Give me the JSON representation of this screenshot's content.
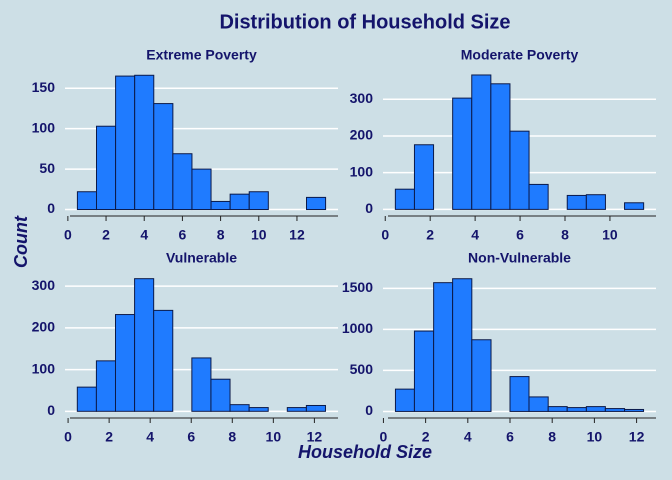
{
  "title": "Distribution of Household Size",
  "x_label": "Household Size",
  "y_label": "Count",
  "chart_data": [
    {
      "type": "histogram",
      "title": "Extreme Poverty",
      "color": "#1f7bff",
      "grid": true,
      "bins": [
        0.5,
        1.5,
        2.5,
        3.5,
        4.5,
        5.5,
        6.5,
        7.5,
        8.5,
        9.5,
        10.5,
        11.5,
        12.5,
        13.5
      ],
      "values": [
        22,
        103,
        165,
        166,
        131,
        69,
        50,
        10,
        19,
        22,
        0,
        0,
        15
      ],
      "xlim": [
        -0.15,
        14.15
      ],
      "xticks": [
        0,
        2,
        4,
        6,
        8,
        10,
        12
      ],
      "ylim": [
        -8,
        175
      ],
      "yticks": [
        0,
        50,
        100,
        150
      ]
    },
    {
      "type": "histogram",
      "title": "Moderate Poverty",
      "color": "#1f7bff",
      "grid": true,
      "bins": [
        0.45,
        1.3,
        2.15,
        3.0,
        3.85,
        4.7,
        5.55,
        6.4,
        7.25,
        8.1,
        8.95,
        9.8,
        10.65,
        11.5
      ],
      "values": [
        55,
        176,
        0,
        303,
        366,
        342,
        213,
        68,
        0,
        38,
        40,
        0,
        18
      ],
      "xlim": [
        -0.1,
        12.05
      ],
      "xticks": [
        0,
        2,
        4,
        6,
        8,
        10
      ],
      "ylim": [
        -18,
        385
      ],
      "yticks": [
        0,
        100,
        200,
        300
      ]
    },
    {
      "type": "histogram",
      "title": "Vulnerable",
      "color": "#1f7bff",
      "grid": true,
      "bins": [
        0.45,
        1.38,
        2.31,
        3.24,
        4.17,
        5.1,
        6.03,
        6.96,
        7.89,
        8.82,
        9.75,
        10.68,
        11.61,
        12.54
      ],
      "values": [
        58,
        121,
        232,
        318,
        242,
        0,
        128,
        77,
        16,
        9,
        0,
        9,
        14
      ],
      "xlim": [
        -0.15,
        13.15
      ],
      "xticks": [
        0,
        2,
        4,
        6,
        8,
        10,
        12
      ],
      "ylim": [
        -16,
        334
      ],
      "yticks": [
        0,
        100,
        200,
        300
      ]
    },
    {
      "type": "histogram",
      "title": "Non-Vulnerable",
      "color": "#1f7bff",
      "grid": true,
      "bins": [
        0.57,
        1.47,
        2.38,
        3.28,
        4.19,
        5.1,
        6.0,
        6.9,
        7.81,
        8.71,
        9.62,
        10.52,
        11.43,
        12.33
      ],
      "values": [
        272,
        980,
        1570,
        1618,
        874,
        0,
        425,
        177,
        59,
        47,
        59,
        35,
        24
      ],
      "xlim": [
        -0.02,
        12.92
      ],
      "xticks": [
        0,
        2,
        4,
        6,
        8,
        10,
        12
      ],
      "ylim": [
        -80,
        1700
      ],
      "yticks": [
        0,
        500,
        1000,
        1500
      ]
    }
  ]
}
